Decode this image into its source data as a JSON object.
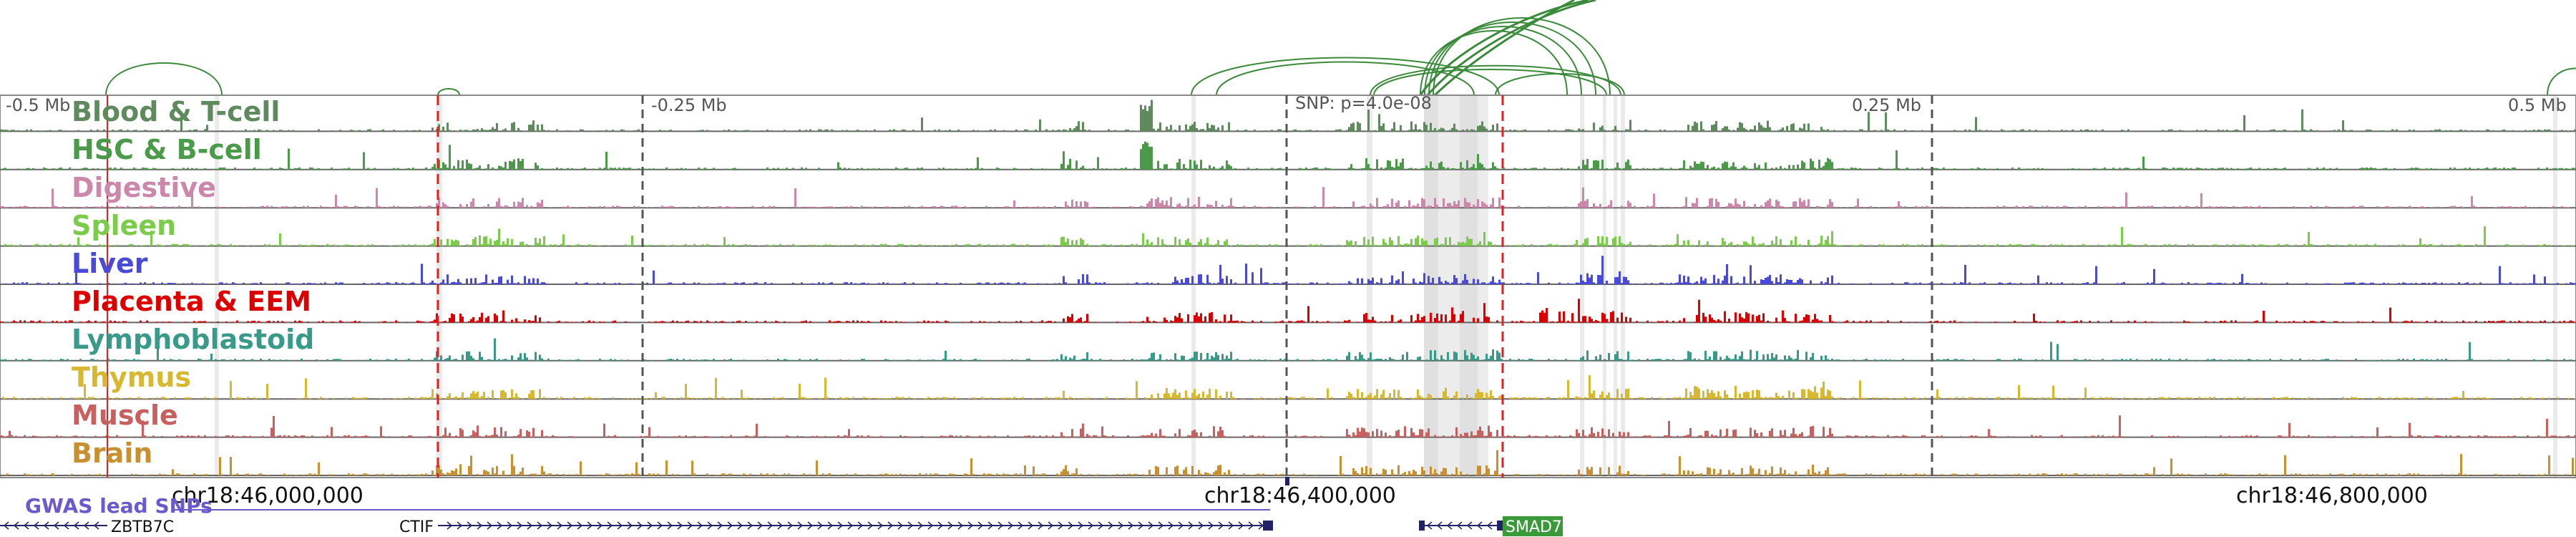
{
  "locus": {
    "top_labels": [
      "-0.5 Mb",
      "-0.25 Mb",
      "SNP: p=4.0e-08",
      "0.25 Mb",
      "0.5 Mb"
    ],
    "coordinates": [
      "chr18:46,000,000",
      "chr18:46,400,000",
      "chr18:46,800,000"
    ]
  },
  "tracks": [
    {
      "name": "Blood & T-cell",
      "color": "#5e8a5e"
    },
    {
      "name": "HSC & B-cell",
      "color": "#4a9a4a"
    },
    {
      "name": "Digestive",
      "color": "#cc88aa"
    },
    {
      "name": "Spleen",
      "color": "#7acc4a"
    },
    {
      "name": "Liver",
      "color": "#4a4ad8"
    },
    {
      "name": "Placenta & EEM",
      "color": "#dd0000"
    },
    {
      "name": "Lymphoblastoid",
      "color": "#3a9a8a"
    },
    {
      "name": "Thymus",
      "color": "#d8b830"
    },
    {
      "name": "Muscle",
      "color": "#c86060"
    },
    {
      "name": "Brain",
      "color": "#c89030"
    }
  ],
  "snps_label": "GWAS lead SNPs",
  "genes": [
    {
      "name": "ZBTB7C",
      "highlighted": false
    },
    {
      "name": "CTIF",
      "highlighted": false
    },
    {
      "name": "SMAD7",
      "highlighted": true
    }
  ],
  "colors": {
    "loop": "#3a8a3a",
    "snp_line": "#dd2222",
    "axis": "#555555",
    "gene": "#222266",
    "snp_label": "#6a5acd",
    "smad7": "#3a9a3a"
  }
}
